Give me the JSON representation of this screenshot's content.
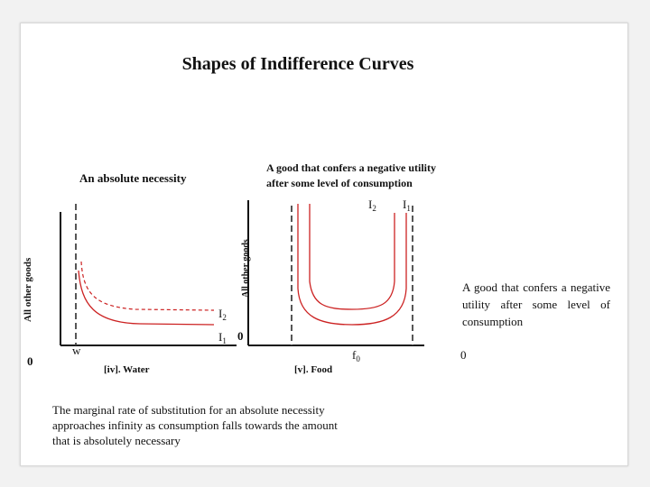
{
  "title": "Shapes of Indifference Curves",
  "left_panel": {
    "heading": "An absolute necessity",
    "y_axis_label": "All other goods",
    "origin": "0",
    "x_mark": "w",
    "curve_labels": [
      {
        "base": "I",
        "sub": "2"
      },
      {
        "base": "I",
        "sub": "1"
      }
    ],
    "caption": "[iv]. Water"
  },
  "right_panel": {
    "heading_line1": "A good that confers a negative utility",
    "heading_line2": "after some level of consumption",
    "y_axis_label": "All other goods",
    "origin": "0",
    "x_mark": {
      "base": "f",
      "sub": "0"
    },
    "curve_labels": [
      {
        "base": "I",
        "sub": "2"
      },
      {
        "base": "I",
        "sub": "1"
      }
    ],
    "caption": "[v]. Food"
  },
  "side_note": {
    "text": "A good that confers a negative utility after some level of consumption",
    "value": "0"
  },
  "footnote": "The marginal rate of substitution for an absolute necessity approaches infinity as consumption falls towards the amount that is absolutely necessary",
  "colors": {
    "curve": "#cc2222",
    "axis": "#111111",
    "dashed": "#444444"
  }
}
